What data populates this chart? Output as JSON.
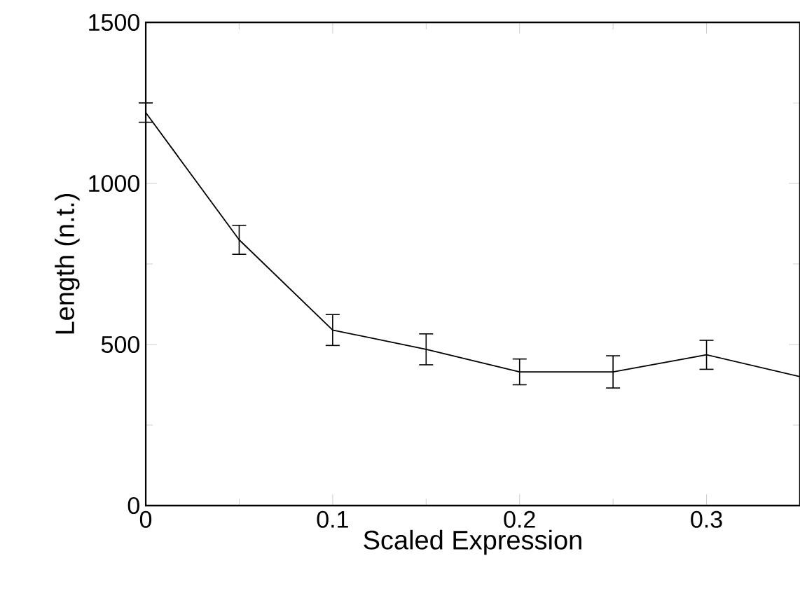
{
  "chart_data": {
    "type": "line",
    "xlabel": "Scaled Expression",
    "ylabel": "Length (n.t.)",
    "x": [
      0,
      0.05,
      0.1,
      0.15,
      0.2,
      0.25,
      0.3,
      0.35
    ],
    "values": [
      1220,
      825,
      545,
      485,
      415,
      415,
      468,
      400
    ],
    "errors": [
      30,
      45,
      48,
      48,
      40,
      50,
      45,
      null
    ],
    "color": "#000000",
    "marker": "none",
    "line_style": "solid",
    "xlim": [
      0,
      0.35
    ],
    "xticks": [
      0,
      0.1,
      0.2,
      0.3
    ],
    "ylim": [
      0,
      1500
    ],
    "yticks": [
      0,
      500,
      1000,
      1500
    ]
  }
}
